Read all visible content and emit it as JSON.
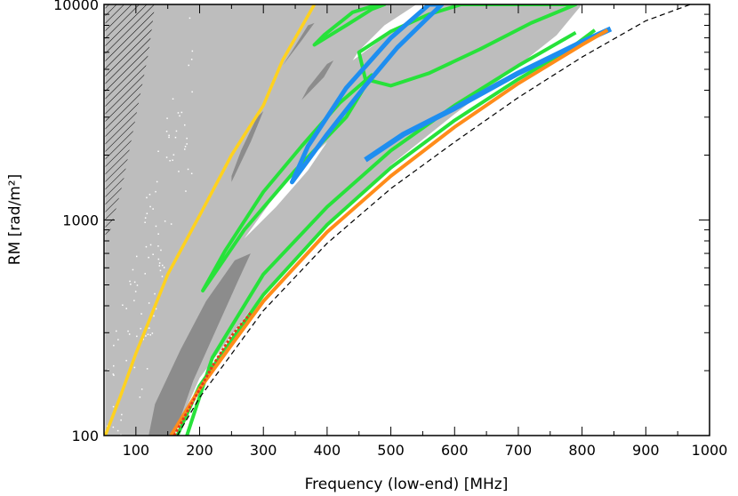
{
  "chart_data": {
    "type": "area",
    "xlabel": "Frequency (low-end) [MHz]",
    "ylabel": "RM [rad/m²]",
    "xlim": [
      50,
      1000
    ],
    "ylim": [
      100,
      10000
    ],
    "y_scale": "log",
    "x_ticks": [
      100,
      200,
      300,
      400,
      500,
      600,
      700,
      800,
      900,
      1000
    ],
    "y_ticks_major": [
      100,
      1000,
      10000
    ],
    "grid": false,
    "colors": {
      "light_gray": "#bdbdbd",
      "dark_gray": "#8c8c8c",
      "yellow": "#ffd21f",
      "green": "#27e23a",
      "blue": "#1e8ef0",
      "orange": "#ff8c1a",
      "red": "#e53a1a",
      "dashed": "#000000"
    },
    "series": [
      {
        "kind": "boundary-dashed",
        "points": [
          [
            165,
            100
          ],
          [
            200,
            150
          ],
          [
            300,
            380
          ],
          [
            400,
            780
          ],
          [
            500,
            1400
          ],
          [
            600,
            2300
          ],
          [
            700,
            3700
          ],
          [
            800,
            5700
          ],
          [
            900,
            8400
          ],
          [
            970,
            10000
          ]
        ]
      },
      {
        "kind": "boundary-orange",
        "points": [
          [
            155,
            100
          ],
          [
            200,
            165
          ],
          [
            300,
            420
          ],
          [
            400,
            880
          ],
          [
            500,
            1600
          ],
          [
            600,
            2700
          ],
          [
            700,
            4300
          ],
          [
            800,
            6500
          ],
          [
            840,
            7600
          ]
        ]
      },
      {
        "kind": "yellow",
        "points": [
          [
            52,
            100
          ],
          [
            75,
            150
          ],
          [
            100,
            240
          ],
          [
            150,
            560
          ],
          [
            200,
            1050
          ],
          [
            250,
            2000
          ],
          [
            300,
            3400
          ],
          [
            330,
            5500
          ],
          [
            380,
            10000
          ]
        ]
      },
      {
        "kind": "blue-lobe",
        "points": [
          [
            345,
            1500
          ],
          [
            400,
            2500
          ],
          [
            460,
            4200
          ],
          [
            510,
            6300
          ],
          [
            555,
            8500
          ],
          [
            580,
            10000
          ],
          [
            560,
            10000
          ],
          [
            500,
            7000
          ],
          [
            430,
            4100
          ],
          [
            370,
            2200
          ],
          [
            345,
            1500
          ]
        ]
      },
      {
        "kind": "green-lobe",
        "points": [
          [
            205,
            470
          ],
          [
            240,
            720
          ],
          [
            300,
            1350
          ],
          [
            360,
            2200
          ],
          [
            420,
            3500
          ],
          [
            470,
            4700
          ],
          [
            430,
            3000
          ],
          [
            350,
            1700
          ],
          [
            270,
            900
          ],
          [
            205,
            470
          ]
        ]
      }
    ]
  }
}
